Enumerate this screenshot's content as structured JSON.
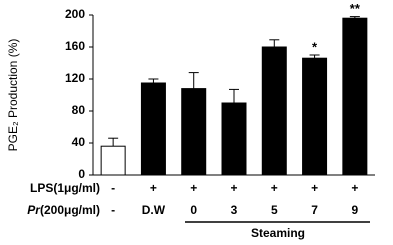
{
  "chart_data": {
    "type": "bar",
    "y_label": "PGE₂ Production (%)",
    "categories": [
      null,
      null,
      null,
      null,
      null,
      null,
      null
    ],
    "values": [
      36,
      115,
      108,
      90,
      160,
      146,
      196
    ],
    "errors": [
      10,
      5,
      20,
      17,
      9,
      4,
      2
    ],
    "fill_colors": [
      "#ffffff",
      "#000000",
      "#000000",
      "#000000",
      "#000000",
      "#000000",
      "#000000"
    ],
    "annotations": [
      null,
      null,
      null,
      null,
      null,
      "*",
      "**"
    ],
    "ylim": [
      0,
      200
    ],
    "yticks": [
      0,
      40,
      80,
      120,
      160,
      200
    ],
    "grid": false,
    "rows": [
      {
        "label": "LPS(1μg/ml)",
        "cells": [
          "-",
          "+",
          "+",
          "+",
          "+",
          "+",
          "+"
        ]
      },
      {
        "label_italic": "Pr",
        "label": "(200μg/ml)",
        "cells": [
          "-",
          "D.W",
          "0",
          "3",
          "5",
          "7",
          "9"
        ]
      }
    ],
    "group_label": "Steaming"
  }
}
